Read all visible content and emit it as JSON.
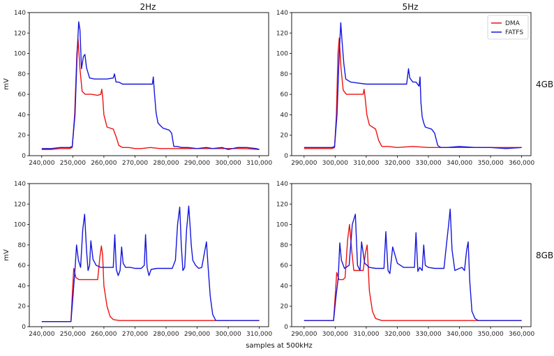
{
  "figure": {
    "xlabel": "samples at 500kHz",
    "col_titles": [
      "2Hz",
      "5Hz"
    ],
    "row_labels": [
      "4GB",
      "8GB"
    ],
    "legend": {
      "placement": "top-right",
      "entries": [
        "DMA",
        "FATFS"
      ]
    }
  },
  "colors": {
    "DMA": "#ee1111",
    "FATFS": "#1515dd",
    "axes": "#000000"
  },
  "chart_data": [
    {
      "type": "line",
      "col_title": "2Hz",
      "row_label": "4GB",
      "ylabel": "mV",
      "xlim": [
        236000,
        313000
      ],
      "ylim": [
        0,
        140
      ],
      "xticks": [
        240000,
        250000,
        260000,
        270000,
        280000,
        290000,
        300000,
        310000
      ],
      "xtick_labels": [
        "240,000",
        "250,000",
        "260,000",
        "270,000",
        "280,000",
        "290,000",
        "300,000",
        "310,000"
      ],
      "yticks": [
        0,
        20,
        40,
        60,
        80,
        100,
        120,
        140
      ],
      "ytick_labels": [
        "0",
        "20",
        "40",
        "60",
        "80",
        "100",
        "120",
        "140"
      ],
      "series": [
        {
          "name": "DMA",
          "x": [
            240000,
            243000,
            246000,
            249000,
            249800,
            250600,
            251300,
            251700,
            252300,
            253000,
            254000,
            256000,
            258000,
            259000,
            259300,
            259600,
            260000,
            261000,
            262000,
            263000,
            264000,
            264800,
            266000,
            268000,
            270000,
            272000,
            275000,
            278000,
            282000,
            285000,
            290000,
            295000,
            300000,
            305000,
            310000
          ],
          "y": [
            6,
            6,
            7,
            7,
            8,
            40,
            100,
            114,
            85,
            63,
            60,
            60,
            59,
            60,
            65,
            58,
            40,
            28,
            27,
            26,
            18,
            10,
            8,
            8,
            7,
            7,
            8,
            7,
            7,
            7,
            7,
            7,
            7,
            7,
            6
          ]
        },
        {
          "name": "FATFS",
          "x": [
            240000,
            243000,
            246000,
            249000,
            249800,
            250700,
            251400,
            251900,
            252300,
            252800,
            253400,
            253900,
            254400,
            255400,
            257000,
            259000,
            261000,
            263000,
            263400,
            263900,
            264800,
            266000,
            268000,
            270000,
            272000,
            274000,
            275600,
            275900,
            276300,
            276800,
            277400,
            278000,
            279000,
            280000,
            281000,
            281800,
            282500,
            283500,
            285000,
            287000,
            290000,
            293000,
            295000,
            298000,
            300000,
            303000,
            306000,
            309000,
            310000
          ],
          "y": [
            7,
            7,
            8,
            8,
            9,
            40,
            100,
            131,
            123,
            85,
            97,
            99,
            86,
            76,
            75,
            75,
            75,
            76,
            80,
            72,
            72,
            70,
            70,
            70,
            70,
            70,
            70,
            77,
            60,
            42,
            32,
            30,
            27,
            26,
            25,
            22,
            9,
            9,
            8,
            8,
            7,
            8,
            7,
            8,
            6,
            8,
            8,
            7,
            6
          ]
        }
      ]
    },
    {
      "type": "line",
      "col_title": "5Hz",
      "row_label": "4GB",
      "ylabel": "",
      "xlim": [
        286000,
        363000
      ],
      "ylim": [
        0,
        140
      ],
      "xticks": [
        290000,
        300000,
        310000,
        320000,
        330000,
        340000,
        350000,
        360000
      ],
      "xtick_labels": [
        "290,000",
        "300,000",
        "310,000",
        "320,000",
        "330,000",
        "340,000",
        "350,000",
        "360,000"
      ],
      "yticks": [
        0,
        20,
        40,
        60,
        80,
        100,
        120,
        140
      ],
      "ytick_labels": [
        "0",
        "20",
        "40",
        "60",
        "80",
        "100",
        "120",
        "140"
      ],
      "series": [
        {
          "name": "DMA",
          "x": [
            290000,
            293000,
            296000,
            299000,
            299800,
            300400,
            300900,
            301300,
            301900,
            302600,
            303600,
            306000,
            308000,
            309000,
            309300,
            309600,
            310200,
            311000,
            312000,
            313000,
            314000,
            315000,
            317000,
            320000,
            325000,
            330000,
            335000,
            340000,
            345000,
            350000,
            355000,
            360000
          ],
          "y": [
            7,
            7,
            7,
            7,
            8,
            40,
            100,
            115,
            85,
            64,
            60,
            60,
            60,
            60,
            65,
            58,
            40,
            30,
            28,
            26,
            15,
            9,
            9,
            8,
            9,
            8,
            8,
            8,
            8,
            8,
            8,
            8
          ],
          "label": "DMA"
        },
        {
          "name": "FATFS",
          "x": [
            290000,
            293000,
            296000,
            299000,
            299800,
            300600,
            301300,
            301800,
            302200,
            302800,
            303400,
            305000,
            310000,
            315000,
            320000,
            323000,
            323600,
            324000,
            325000,
            326000,
            327000,
            327300,
            327600,
            328000,
            328500,
            329000,
            330000,
            331000,
            332000,
            333000,
            334000,
            336000,
            340000,
            345000,
            350000,
            355000,
            360000
          ],
          "y": [
            8,
            8,
            8,
            8,
            9,
            40,
            100,
            130,
            112,
            90,
            75,
            72,
            70,
            70,
            70,
            70,
            85,
            76,
            72,
            72,
            68,
            77,
            52,
            38,
            32,
            28,
            27,
            26,
            22,
            10,
            8,
            8,
            9,
            8,
            8,
            7,
            8
          ],
          "label": "FATFS"
        }
      ]
    },
    {
      "type": "line",
      "col_title": "2Hz",
      "row_label": "8GB",
      "ylabel": "mV",
      "xlim": [
        236000,
        313000
      ],
      "ylim": [
        0,
        140
      ],
      "xticks": [
        240000,
        250000,
        260000,
        270000,
        280000,
        290000,
        300000,
        310000
      ],
      "xtick_labels": [
        "240,000",
        "250,000",
        "260,000",
        "270,000",
        "280,000",
        "290,000",
        "300,000",
        "310,000"
      ],
      "yticks": [
        0,
        20,
        40,
        60,
        80,
        100,
        120,
        140
      ],
      "ytick_labels": [
        "0",
        "20",
        "40",
        "60",
        "80",
        "100",
        "120",
        "140"
      ],
      "series": [
        {
          "name": "DMA",
          "x": [
            240000,
            245000,
            249000,
            249400,
            249800,
            250300,
            251000,
            252000,
            254000,
            256000,
            258000,
            258700,
            259200,
            259600,
            260000,
            261000,
            262000,
            263000,
            265000,
            270000,
            280000,
            290000,
            300000,
            310000
          ],
          "y": [
            5,
            5,
            5,
            5,
            30,
            57,
            48,
            46,
            46,
            46,
            46,
            68,
            79,
            70,
            40,
            20,
            10,
            7,
            6,
            6,
            6,
            6,
            6,
            6
          ]
        },
        {
          "name": "FATFS",
          "x": [
            240000,
            245000,
            249000,
            249400,
            250000,
            250800,
            251200,
            251800,
            252500,
            253200,
            253800,
            254400,
            254900,
            255400,
            255800,
            256500,
            257500,
            259000,
            261000,
            263000,
            263500,
            264000,
            264600,
            265200,
            265700,
            266200,
            267000,
            268500,
            270000,
            272000,
            273000,
            273400,
            273900,
            274500,
            275200,
            277000,
            280000,
            282000,
            283000,
            283700,
            284400,
            284900,
            285400,
            286000,
            286600,
            287000,
            287300,
            287700,
            288100,
            288600,
            289500,
            290500,
            291500,
            292500,
            293000,
            293500,
            294200,
            295000,
            296000,
            300000,
            305000,
            310000
          ],
          "y": [
            5,
            5,
            5,
            5,
            28,
            60,
            80,
            65,
            58,
            95,
            110,
            75,
            55,
            60,
            84,
            66,
            60,
            58,
            58,
            58,
            90,
            56,
            50,
            55,
            78,
            62,
            58,
            58,
            57,
            57,
            60,
            90,
            58,
            50,
            56,
            57,
            57,
            57,
            65,
            100,
            117,
            80,
            55,
            58,
            95,
            108,
            118,
            100,
            80,
            65,
            60,
            57,
            58,
            75,
            83,
            60,
            30,
            12,
            6,
            6,
            6,
            6
          ]
        }
      ]
    },
    {
      "type": "line",
      "col_title": "5Hz",
      "row_label": "8GB",
      "ylabel": "",
      "xlim": [
        286000,
        363000
      ],
      "ylim": [
        0,
        140
      ],
      "xticks": [
        290000,
        300000,
        310000,
        320000,
        330000,
        340000,
        350000,
        360000
      ],
      "xtick_labels": [
        "290,000",
        "300,000",
        "310,000",
        "320,000",
        "330,000",
        "340,000",
        "350,000",
        "360,000"
      ],
      "yticks": [
        0,
        20,
        40,
        60,
        80,
        100,
        120,
        140
      ],
      "ytick_labels": [
        "0",
        "20",
        "40",
        "60",
        "80",
        "100",
        "120",
        "140"
      ],
      "series": [
        {
          "name": "DMA",
          "x": [
            290000,
            295000,
            299500,
            300000,
            300500,
            301200,
            302500,
            303200,
            304000,
            304600,
            305300,
            306000,
            307000,
            308000,
            309000,
            309800,
            310300,
            311000,
            312000,
            313000,
            315000,
            320000,
            330000,
            340000,
            350000,
            360000
          ],
          "y": [
            6,
            6,
            6,
            30,
            53,
            46,
            46,
            48,
            85,
            100,
            75,
            55,
            55,
            55,
            55,
            73,
            80,
            35,
            15,
            8,
            6,
            6,
            6,
            6,
            6,
            6
          ]
        },
        {
          "name": "FATFS",
          "x": [
            290000,
            295000,
            299500,
            300200,
            301000,
            301500,
            302000,
            303000,
            304500,
            305500,
            306500,
            307200,
            308000,
            308500,
            309500,
            311000,
            313000,
            315000,
            315700,
            316300,
            317000,
            317600,
            318500,
            320000,
            322000,
            324000,
            325500,
            326000,
            326600,
            327200,
            328000,
            328500,
            329000,
            330000,
            332000,
            334000,
            335000,
            335800,
            336500,
            337000,
            337600,
            338500,
            340000,
            340800,
            341600,
            342300,
            342800,
            343300,
            344000,
            345000,
            346000,
            350000,
            355000,
            360000
          ],
          "y": [
            6,
            6,
            6,
            28,
            48,
            82,
            65,
            57,
            60,
            100,
            110,
            60,
            55,
            83,
            62,
            58,
            57,
            57,
            57,
            93,
            55,
            52,
            78,
            62,
            58,
            58,
            58,
            92,
            54,
            58,
            55,
            80,
            60,
            58,
            57,
            57,
            57,
            80,
            100,
            115,
            75,
            55,
            57,
            58,
            55,
            75,
            83,
            45,
            15,
            8,
            6,
            6,
            6,
            6
          ]
        }
      ]
    }
  ]
}
